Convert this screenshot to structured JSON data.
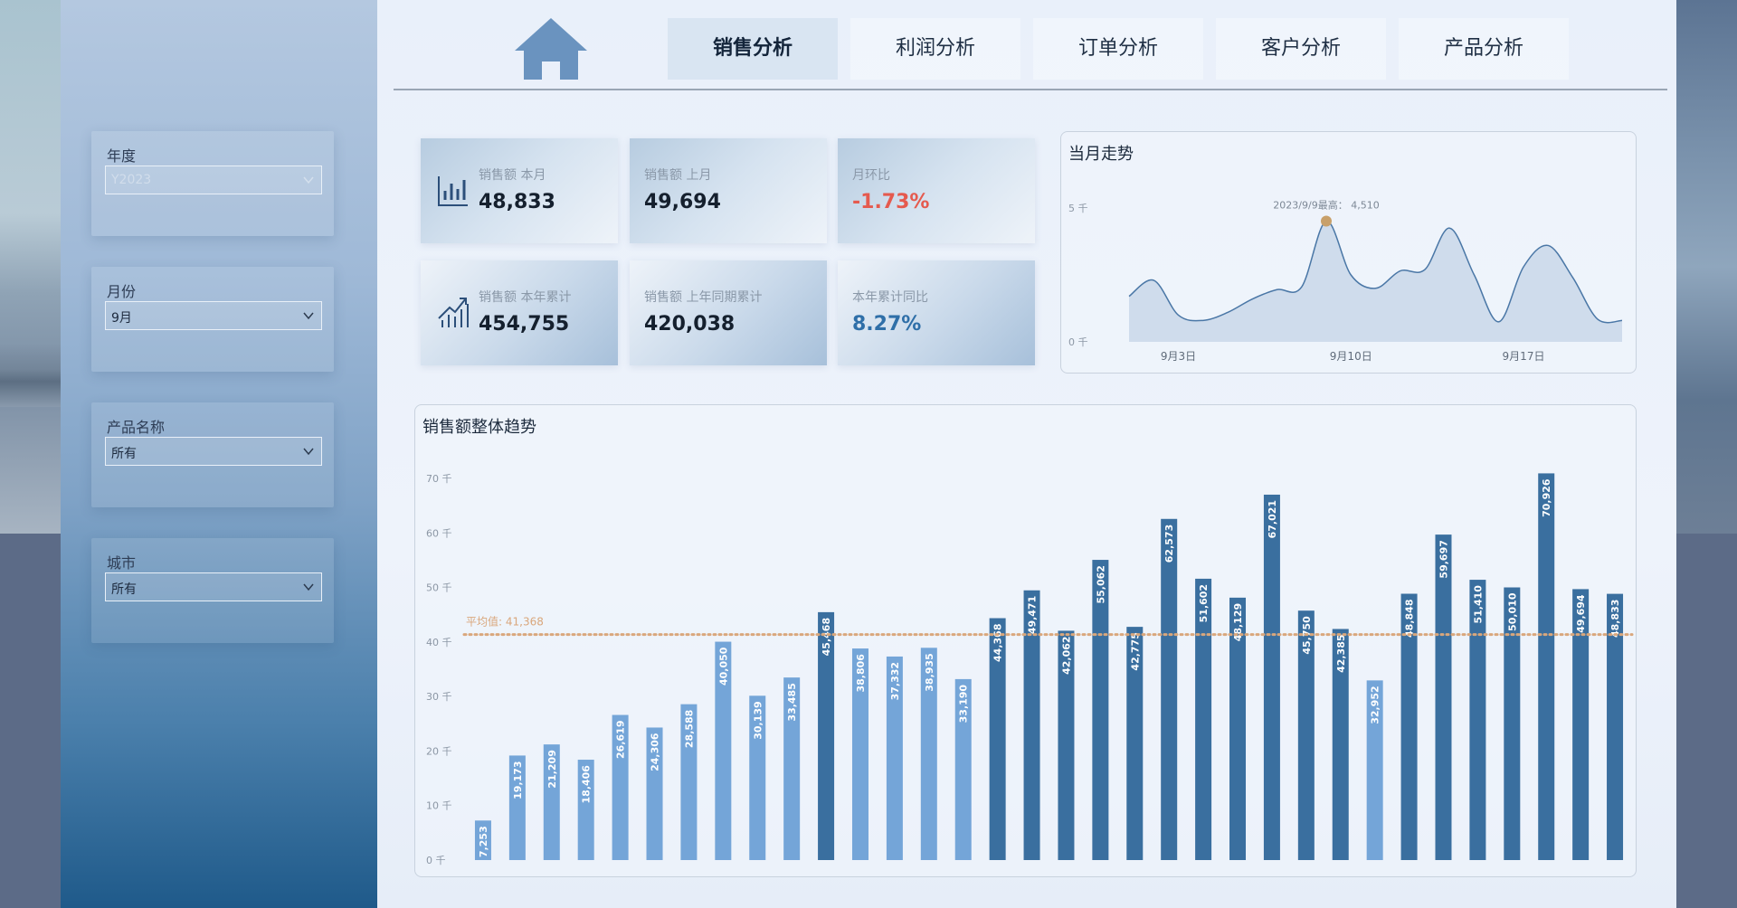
{
  "nav": {
    "tabs": [
      {
        "label": "销售分析",
        "active": true
      },
      {
        "label": "利润分析",
        "active": false
      },
      {
        "label": "订单分析",
        "active": false
      },
      {
        "label": "客户分析",
        "active": false
      },
      {
        "label": "产品分析",
        "active": false
      }
    ],
    "home_icon": "home-icon"
  },
  "filters": {
    "year": {
      "label": "年度",
      "value": "Y2023"
    },
    "month": {
      "label": "月份",
      "value": "9月"
    },
    "product": {
      "label": "产品名称",
      "value": "所有"
    },
    "city": {
      "label": "城市",
      "value": "所有"
    }
  },
  "kpis": {
    "this_month": {
      "label": "销售额 本月",
      "value": "48,833",
      "icon": "bar-chart-icon"
    },
    "last_month": {
      "label": "销售额 上月",
      "value": "49,694"
    },
    "mom": {
      "label": "月环比",
      "value": "-1.73%",
      "color": "#e55a4e"
    },
    "ytd": {
      "label": "销售额 本年累计",
      "value": "454,755",
      "icon": "trend-up-icon"
    },
    "last_ytd": {
      "label": "销售额 上年同期累计",
      "value": "420,038"
    },
    "yoy": {
      "label": "本年累计同比",
      "value": "8.27%",
      "color": "#2f6fa8"
    }
  },
  "chart_data": [
    {
      "type": "area",
      "title": "当月走势",
      "y_ticks": [
        "5 千",
        "0 千"
      ],
      "ylim": [
        0,
        5000
      ],
      "x_ticks": [
        {
          "label": "9月3日",
          "x": 3
        },
        {
          "label": "9月10日",
          "x": 10
        },
        {
          "label": "9月17日",
          "x": 17
        }
      ],
      "x": [
        1,
        2,
        3,
        4,
        5,
        6,
        7,
        8,
        9,
        10,
        11,
        12,
        13,
        14,
        15,
        16,
        17,
        18,
        19,
        20,
        21
      ],
      "values": [
        1700,
        2300,
        1000,
        800,
        1100,
        1600,
        1950,
        2050,
        4510,
        2500,
        2000,
        2650,
        2700,
        4250,
        2500,
        750,
        2800,
        3600,
        2400,
        850,
        800
      ],
      "annotation": {
        "x": 9,
        "value": 4510,
        "text": "2023/9/9最高： 4,510"
      },
      "color": "#6f97c2"
    },
    {
      "type": "bar",
      "title": "销售额整体趋势",
      "y_ticks": [
        "70 千",
        "60 千",
        "50 千",
        "40 千",
        "30 千",
        "20 千",
        "10 千",
        "0 千"
      ],
      "ylim": [
        0,
        70000
      ],
      "values": [
        7253,
        19173,
        21209,
        18406,
        26619,
        24306,
        28588,
        40050,
        30139,
        33485,
        45468,
        38806,
        37332,
        38935,
        33190,
        44368,
        49471,
        42062,
        55062,
        42775,
        62573,
        51602,
        48129,
        67021,
        45750,
        42385,
        32952,
        48848,
        59697,
        51410,
        50010,
        70926,
        49694,
        48833
      ],
      "labels": [
        "7,253",
        "19,173",
        "21,209",
        "18,406",
        "26,619",
        "24,306",
        "28,588",
        "40,050",
        "30,139",
        "33,485",
        "45,468",
        "38,806",
        "37,332",
        "38,935",
        "33,190",
        "44,368",
        "49,471",
        "42,062",
        "55,062",
        "42,775",
        "62,573",
        "51,602",
        "48,129",
        "67,021",
        "45,750",
        "42,385",
        "32,952",
        "48,848",
        "59,697",
        "51,410",
        "50,010",
        "70,926",
        "49,694",
        "48,833"
      ],
      "colors": [
        "light",
        "light",
        "light",
        "light",
        "light",
        "light",
        "light",
        "light",
        "light",
        "light",
        "dark",
        "light",
        "light",
        "light",
        "light",
        "dark",
        "dark",
        "dark",
        "dark",
        "dark",
        "dark",
        "dark",
        "dark",
        "dark",
        "dark",
        "dark",
        "light",
        "dark",
        "dark",
        "dark",
        "dark",
        "dark",
        "dark",
        "dark"
      ],
      "palette": {
        "light": "#74a5d8",
        "dark": "#3a6f9f"
      },
      "average": {
        "value": 41368,
        "label": "平均值: 41,368",
        "color": "#d9a77c"
      }
    }
  ]
}
